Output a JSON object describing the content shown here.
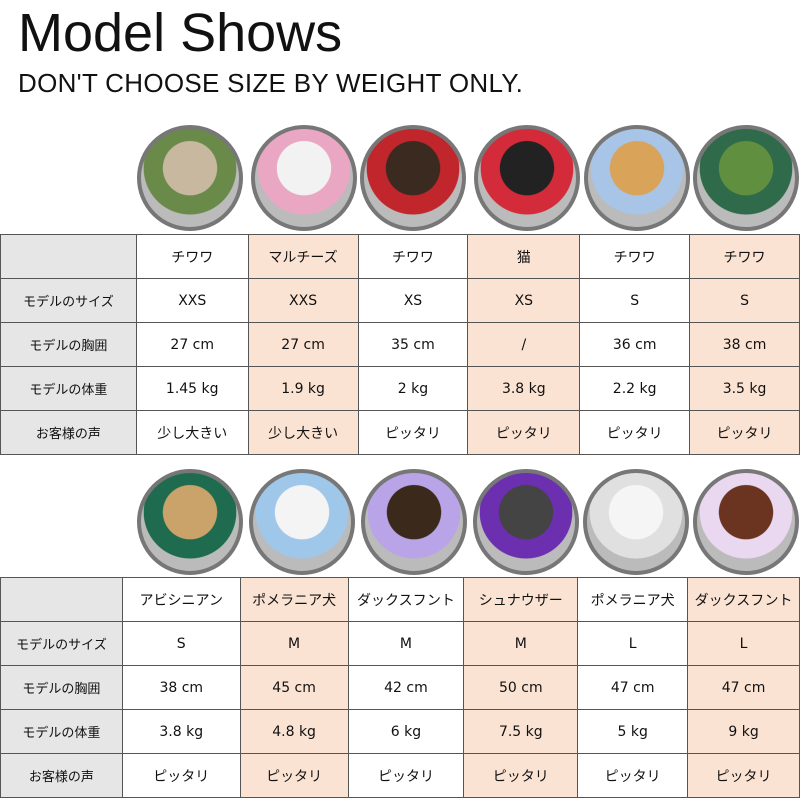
{
  "title": "Model Shows",
  "subtitle": "DON'T CHOOSE SIZE BY WEIGHT ONLY.",
  "colors": {
    "highlight": "#fbe3d3",
    "label_bg": "#e6e6e6"
  },
  "row_labels": [
    "モデルのサイズ",
    "モデルの胸囲",
    "モデルの体重",
    "お客様の声"
  ],
  "table1": {
    "breeds": [
      "チワワ",
      "マルチーズ",
      "チワワ",
      "猫",
      "チワワ",
      "チワワ"
    ],
    "sizes": [
      "XXS",
      "XXS",
      "XS",
      "XS",
      "S",
      "S"
    ],
    "chest": [
      "27 cm",
      "27 cm",
      "35 cm",
      "/",
      "36 cm",
      "38 cm"
    ],
    "weight": [
      "1.45 kg",
      "1.9 kg",
      "2 kg",
      "3.8 kg",
      "2.2 kg",
      "3.5 kg"
    ],
    "feedback": [
      "少し大きい",
      "少し大きい",
      "ピッタリ",
      "ピッタリ",
      "ピッタリ",
      "ピッタリ"
    ]
  },
  "table2": {
    "breeds": [
      "アビシニアン",
      "ポメラニア犬",
      "ダックスフント",
      "シュナウザー",
      "ポメラニア犬",
      "ダックスフント"
    ],
    "sizes": [
      "S",
      "M",
      "M",
      "M",
      "L",
      "L"
    ],
    "chest": [
      "38 cm",
      "45 cm",
      "42 cm",
      "50 cm",
      "47 cm",
      "47 cm"
    ],
    "weight": [
      "3.8 kg",
      "4.8 kg",
      "6 kg",
      "7.5 kg",
      "5 kg",
      "9 kg"
    ],
    "feedback": [
      "ピッタリ",
      "ピッタリ",
      "ピッタリ",
      "ピッタリ",
      "ピッタリ",
      "ピッタリ"
    ]
  }
}
